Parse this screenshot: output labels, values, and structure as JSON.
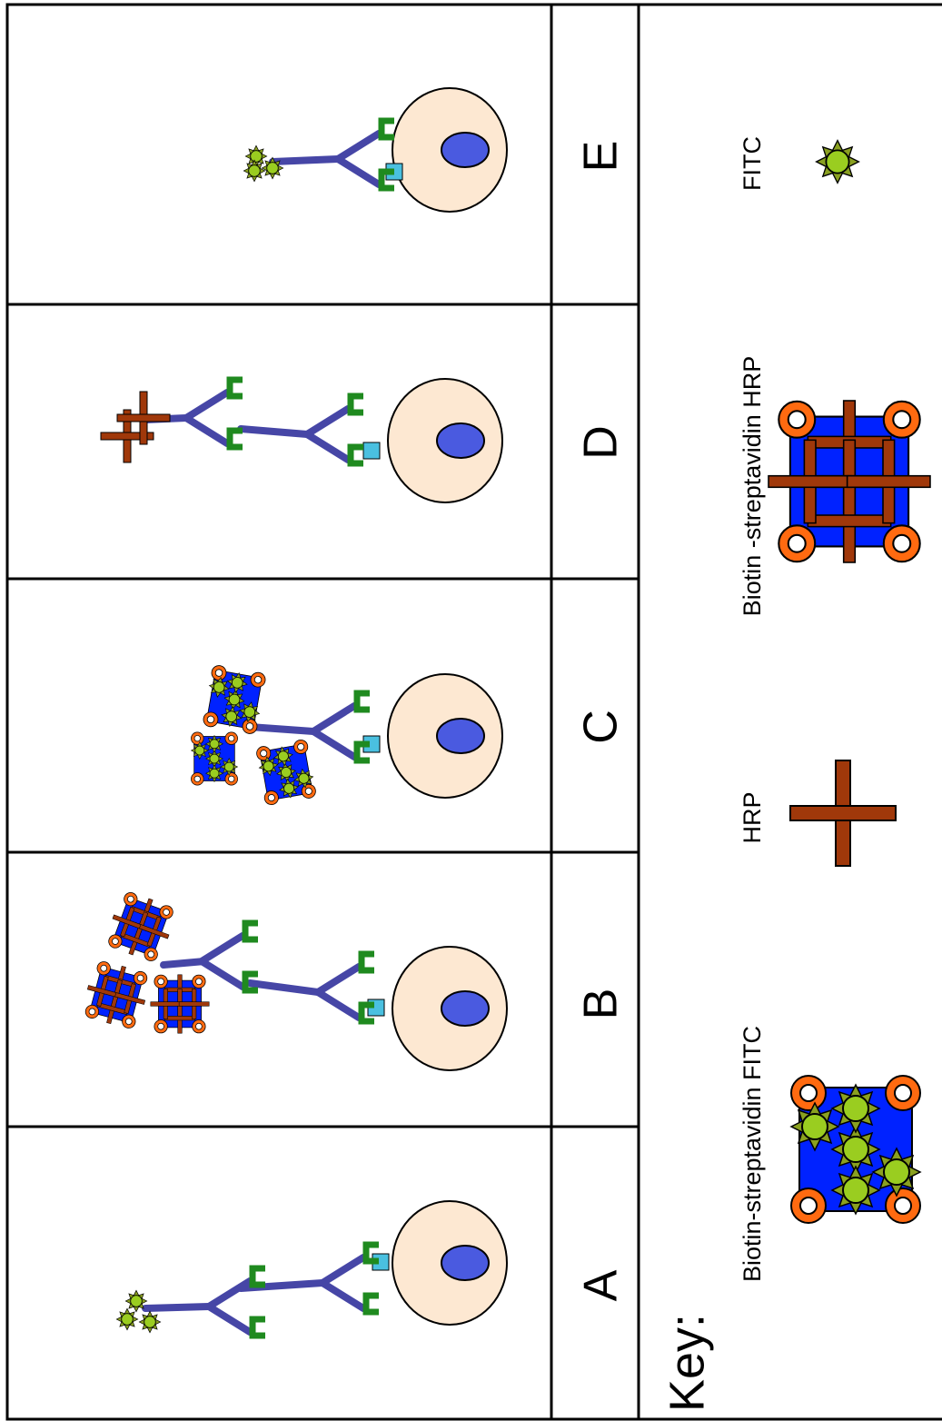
{
  "panels": [
    {
      "label": "A"
    },
    {
      "label": "B"
    },
    {
      "label": "C"
    },
    {
      "label": "D"
    },
    {
      "label": "E"
    }
  ],
  "key": {
    "title": "Key:",
    "items": [
      {
        "label": "Biotin-streptavidin FITC"
      },
      {
        "label": "HRP"
      },
      {
        "label": "Biotin -streptavidin HRP"
      },
      {
        "label": "FITC"
      }
    ]
  }
}
